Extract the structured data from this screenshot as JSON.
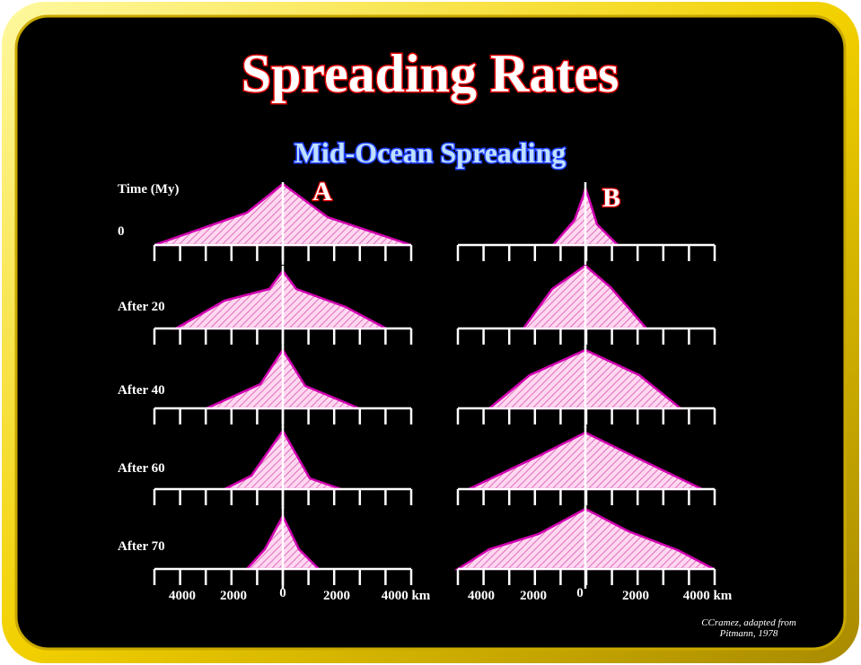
{
  "title": "Spreading Rates",
  "subtitle": "Mid-Ocean Spreading",
  "panels": [
    {
      "label": "A"
    },
    {
      "label": "B"
    }
  ],
  "time_header": "Time (My)",
  "rows": [
    "0",
    "After 20",
    "After 40",
    "After 60",
    "After 70"
  ],
  "axis_labels": [
    "4000",
    "2000",
    "0",
    "2000",
    "4000 km"
  ],
  "credit": [
    "CCramez, adapted from",
    "Pitmann, 1978"
  ]
}
